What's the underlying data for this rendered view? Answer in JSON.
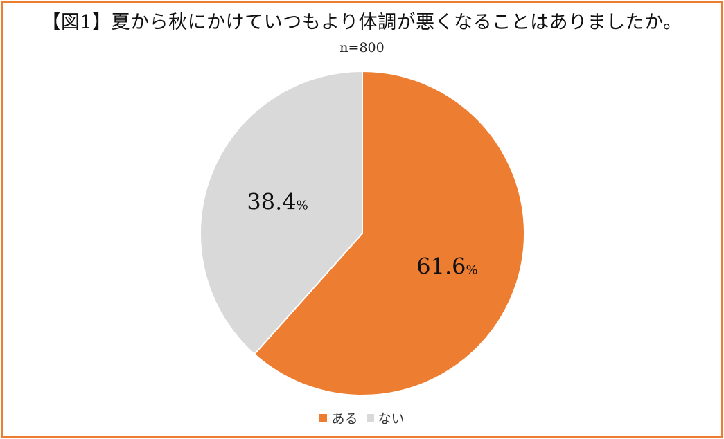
{
  "chart_data": {
    "type": "pie",
    "title": "【図1】夏から秋にかけていつもより体調が悪くなることはありましたか。",
    "subtitle": "n=800",
    "unit": "%",
    "slices": [
      {
        "label": "ある",
        "value": 61.6,
        "color": "#ed7d31"
      },
      {
        "label": "ない",
        "value": 38.4,
        "color": "#d9d9d9"
      }
    ],
    "legend_position": "bottom"
  }
}
